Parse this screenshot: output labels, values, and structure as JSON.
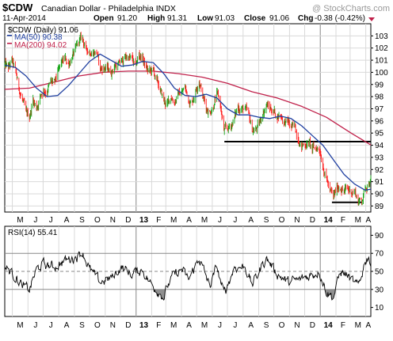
{
  "header": {
    "symbol": "$CDW",
    "description": "Canadian Dollar - Philadelphia INDX",
    "watermark": "@ StockCharts.com",
    "date": "11-Apr-2014",
    "quote": {
      "open_label": "Open",
      "open": "91.20",
      "high_label": "High",
      "high": "91.31",
      "low_label": "Low",
      "low": "91.03",
      "close_label": "Close",
      "close": "91.06",
      "chg_label": "Chg",
      "chg": "-0.38 (-0.42%)"
    }
  },
  "colors": {
    "price_up": "#16a516",
    "price_down": "#ff1c1c",
    "ma50": "#1f3fa0",
    "ma200": "#c0204a",
    "rsi": "#000000",
    "rsi_fill": "#909090",
    "grid": "#d9d9d9",
    "border": "#000000"
  },
  "price_legend": {
    "series": "$CDW (Daily) 91.06",
    "ma50": "MA(50) 90.38",
    "ma200": "MA(200) 94.02"
  },
  "rsi_legend": "RSI(14) 55.41",
  "x_axis": [
    {
      "label": "M",
      "month": 5,
      "year": 2012
    },
    {
      "label": "J",
      "month": 6,
      "year": 2012
    },
    {
      "label": "J",
      "month": 7,
      "year": 2012
    },
    {
      "label": "A",
      "month": 8,
      "year": 2012
    },
    {
      "label": "S",
      "month": 9,
      "year": 2012
    },
    {
      "label": "O",
      "month": 10,
      "year": 2012
    },
    {
      "label": "N",
      "month": 11,
      "year": 2012
    },
    {
      "label": "D",
      "month": 12,
      "year": 2012
    },
    {
      "label": "13",
      "month": 1,
      "year": 2013,
      "bold": true
    },
    {
      "label": "F",
      "month": 2,
      "year": 2013
    },
    {
      "label": "M",
      "month": 3,
      "year": 2013
    },
    {
      "label": "A",
      "month": 4,
      "year": 2013
    },
    {
      "label": "M",
      "month": 5,
      "year": 2013
    },
    {
      "label": "J",
      "month": 6,
      "year": 2013
    },
    {
      "label": "J",
      "month": 7,
      "year": 2013
    },
    {
      "label": "A",
      "month": 8,
      "year": 2013
    },
    {
      "label": "S",
      "month": 9,
      "year": 2013
    },
    {
      "label": "O",
      "month": 10,
      "year": 2013
    },
    {
      "label": "N",
      "month": 11,
      "year": 2013
    },
    {
      "label": "D",
      "month": 12,
      "year": 2013
    },
    {
      "label": "14",
      "month": 1,
      "year": 2014,
      "bold": true
    },
    {
      "label": "F",
      "month": 2,
      "year": 2014
    },
    {
      "label": "M",
      "month": 3,
      "year": 2014
    },
    {
      "label": "A",
      "month": 4,
      "year": 2014
    }
  ],
  "chart_data": {
    "type": "line",
    "x_start": "2012-04-16",
    "x_end": "2014-04-11",
    "price_axis": {
      "ticks": [
        89,
        90,
        91,
        92,
        93,
        94,
        95,
        96,
        97,
        98,
        99,
        100,
        101,
        102,
        103
      ],
      "range": [
        88.5,
        104.0
      ]
    },
    "rsi_axis": {
      "ticks": [
        10,
        30,
        50,
        70,
        90
      ],
      "range": [
        0,
        100
      ],
      "reference_lines": [
        30,
        50,
        70
      ]
    },
    "horizontal_lines": [
      {
        "value": 94.3,
        "from": "2013-06-25",
        "to": "2014-04-11"
      },
      {
        "value": 89.3,
        "from": "2014-01-24",
        "to": "2014-03-24"
      }
    ],
    "price_path": [
      [
        "2012-04-16",
        100.6
      ],
      [
        "2012-04-23",
        100.2
      ],
      [
        "2012-04-30",
        100.9
      ],
      [
        "2012-05-07",
        100.0
      ],
      [
        "2012-05-14",
        98.6
      ],
      [
        "2012-05-21",
        97.8
      ],
      [
        "2012-05-28",
        96.4
      ],
      [
        "2012-06-04",
        96.3
      ],
      [
        "2012-06-11",
        97.8
      ],
      [
        "2012-06-18",
        97.1
      ],
      [
        "2012-06-25",
        98.1
      ],
      [
        "2012-07-02",
        98.6
      ],
      [
        "2012-07-09",
        98.6
      ],
      [
        "2012-07-16",
        99.2
      ],
      [
        "2012-07-23",
        98.9
      ],
      [
        "2012-07-30",
        99.8
      ],
      [
        "2012-08-06",
        100.6
      ],
      [
        "2012-08-13",
        101.0
      ],
      [
        "2012-08-20",
        100.7
      ],
      [
        "2012-08-27",
        101.4
      ],
      [
        "2012-09-03",
        101.7
      ],
      [
        "2012-09-10",
        102.5
      ],
      [
        "2012-09-17",
        102.7
      ],
      [
        "2012-09-24",
        101.8
      ],
      [
        "2012-10-01",
        101.8
      ],
      [
        "2012-10-08",
        101.8
      ],
      [
        "2012-10-15",
        101.8
      ],
      [
        "2012-10-22",
        100.2
      ],
      [
        "2012-10-29",
        100.4
      ],
      [
        "2012-11-05",
        100.3
      ],
      [
        "2012-11-12",
        100.0
      ],
      [
        "2012-11-19",
        100.6
      ],
      [
        "2012-11-26",
        100.6
      ],
      [
        "2012-12-03",
        100.8
      ],
      [
        "2012-12-10",
        101.2
      ],
      [
        "2012-12-17",
        101.3
      ],
      [
        "2012-12-24",
        101.0
      ],
      [
        "2012-12-31",
        100.3
      ],
      [
        "2013-01-07",
        101.4
      ],
      [
        "2013-01-14",
        101.2
      ],
      [
        "2013-01-21",
        100.3
      ],
      [
        "2013-01-28",
        100.0
      ],
      [
        "2013-02-04",
        100.1
      ],
      [
        "2013-02-11",
        99.2
      ],
      [
        "2013-02-18",
        98.4
      ],
      [
        "2013-02-25",
        97.6
      ],
      [
        "2013-03-04",
        97.3
      ],
      [
        "2013-03-11",
        98.0
      ],
      [
        "2013-03-18",
        97.7
      ],
      [
        "2013-03-25",
        98.2
      ],
      [
        "2013-04-01",
        98.3
      ],
      [
        "2013-04-08",
        98.7
      ],
      [
        "2013-04-15",
        97.8
      ],
      [
        "2013-04-22",
        97.6
      ],
      [
        "2013-04-29",
        98.6
      ],
      [
        "2013-05-06",
        99.6
      ],
      [
        "2013-05-13",
        98.1
      ],
      [
        "2013-05-20",
        97.1
      ],
      [
        "2013-05-27",
        96.8
      ],
      [
        "2013-06-03",
        97.4
      ],
      [
        "2013-06-10",
        98.2
      ],
      [
        "2013-06-17",
        97.3
      ],
      [
        "2013-06-24",
        95.1
      ],
      [
        "2013-07-01",
        95.2
      ],
      [
        "2013-07-08",
        95.6
      ],
      [
        "2013-07-15",
        96.3
      ],
      [
        "2013-07-22",
        97.1
      ],
      [
        "2013-07-29",
        97.1
      ],
      [
        "2013-08-05",
        96.9
      ],
      [
        "2013-08-12",
        96.3
      ],
      [
        "2013-08-19",
        95.2
      ],
      [
        "2013-08-26",
        95.3
      ],
      [
        "2013-09-02",
        95.6
      ],
      [
        "2013-09-09",
        96.7
      ],
      [
        "2013-09-16",
        97.4
      ],
      [
        "2013-09-23",
        97.0
      ],
      [
        "2013-09-30",
        96.9
      ],
      [
        "2013-10-07",
        96.4
      ],
      [
        "2013-10-14",
        96.6
      ],
      [
        "2013-10-21",
        96.0
      ],
      [
        "2013-10-28",
        95.9
      ],
      [
        "2013-11-04",
        95.4
      ],
      [
        "2013-11-11",
        95.4
      ],
      [
        "2013-11-18",
        94.8
      ],
      [
        "2013-11-25",
        94.0
      ],
      [
        "2013-12-02",
        94.1
      ],
      [
        "2013-12-09",
        94.3
      ],
      [
        "2013-12-16",
        93.6
      ],
      [
        "2013-12-23",
        93.7
      ],
      [
        "2013-12-30",
        93.8
      ],
      [
        "2014-01-06",
        92.6
      ],
      [
        "2014-01-13",
        91.4
      ],
      [
        "2014-01-20",
        90.2
      ],
      [
        "2014-01-27",
        89.6
      ],
      [
        "2014-02-03",
        90.4
      ],
      [
        "2014-02-10",
        90.7
      ],
      [
        "2014-02-17",
        90.3
      ],
      [
        "2014-02-24",
        90.3
      ],
      [
        "2014-03-03",
        90.2
      ],
      [
        "2014-03-10",
        90.3
      ],
      [
        "2014-03-17",
        89.4
      ],
      [
        "2014-03-24",
        89.5
      ],
      [
        "2014-03-31",
        90.5
      ],
      [
        "2014-04-07",
        91.1
      ],
      [
        "2014-04-11",
        91.06
      ]
    ],
    "ma50_path": [
      [
        "2012-04-16",
        100.6
      ],
      [
        "2012-05-07",
        100.4
      ],
      [
        "2012-05-28",
        99.7
      ],
      [
        "2012-06-18",
        98.7
      ],
      [
        "2012-07-09",
        98.0
      ],
      [
        "2012-07-30",
        98.1
      ],
      [
        "2012-08-20",
        98.9
      ],
      [
        "2012-09-10",
        99.9
      ],
      [
        "2012-10-01",
        100.9
      ],
      [
        "2012-10-22",
        101.5
      ],
      [
        "2012-11-12",
        101.0
      ],
      [
        "2012-12-03",
        100.5
      ],
      [
        "2012-12-24",
        100.6
      ],
      [
        "2013-01-14",
        100.9
      ],
      [
        "2013-02-04",
        100.8
      ],
      [
        "2013-02-25",
        99.9
      ],
      [
        "2013-03-18",
        98.7
      ],
      [
        "2013-04-08",
        98.1
      ],
      [
        "2013-04-29",
        98.0
      ],
      [
        "2013-05-20",
        98.2
      ],
      [
        "2013-06-10",
        97.9
      ],
      [
        "2013-07-01",
        97.0
      ],
      [
        "2013-07-22",
        96.5
      ],
      [
        "2013-08-12",
        96.5
      ],
      [
        "2013-09-02",
        96.3
      ],
      [
        "2013-09-23",
        96.2
      ],
      [
        "2013-10-14",
        96.4
      ],
      [
        "2013-11-04",
        96.2
      ],
      [
        "2013-11-25",
        95.6
      ],
      [
        "2013-12-16",
        94.8
      ],
      [
        "2014-01-06",
        94.0
      ],
      [
        "2014-01-27",
        92.8
      ],
      [
        "2014-02-17",
        91.6
      ],
      [
        "2014-03-10",
        90.8
      ],
      [
        "2014-03-31",
        90.3
      ],
      [
        "2014-04-11",
        90.38
      ]
    ],
    "ma200_path": [
      [
        "2012-04-16",
        98.6
      ],
      [
        "2012-06-04",
        98.7
      ],
      [
        "2012-07-23",
        99.2
      ],
      [
        "2012-09-10",
        99.7
      ],
      [
        "2012-10-29",
        100.0
      ],
      [
        "2012-12-17",
        100.1
      ],
      [
        "2013-02-04",
        100.1
      ],
      [
        "2013-03-25",
        99.9
      ],
      [
        "2013-05-13",
        99.6
      ],
      [
        "2013-07-01",
        99.1
      ],
      [
        "2013-08-19",
        98.4
      ],
      [
        "2013-10-07",
        97.9
      ],
      [
        "2013-11-25",
        97.2
      ],
      [
        "2014-01-13",
        96.3
      ],
      [
        "2014-03-03",
        95.0
      ],
      [
        "2014-04-11",
        94.02
      ]
    ],
    "rsi_path": [
      [
        "2012-04-16",
        55
      ],
      [
        "2012-05-07",
        45
      ],
      [
        "2012-05-21",
        33
      ],
      [
        "2012-06-04",
        30
      ],
      [
        "2012-06-18",
        52
      ],
      [
        "2012-07-02",
        58
      ],
      [
        "2012-07-23",
        55
      ],
      [
        "2012-08-13",
        62
      ],
      [
        "2012-09-03",
        66
      ],
      [
        "2012-09-17",
        72
      ],
      [
        "2012-10-01",
        52
      ],
      [
        "2012-10-22",
        38
      ],
      [
        "2012-11-12",
        42
      ],
      [
        "2012-12-03",
        55
      ],
      [
        "2012-12-24",
        47
      ],
      [
        "2013-01-14",
        52
      ],
      [
        "2013-01-28",
        38
      ],
      [
        "2013-02-11",
        30
      ],
      [
        "2013-02-25",
        22
      ],
      [
        "2013-03-11",
        42
      ],
      [
        "2013-04-01",
        52
      ],
      [
        "2013-04-15",
        40
      ],
      [
        "2013-05-06",
        65
      ],
      [
        "2013-05-27",
        33
      ],
      [
        "2013-06-10",
        55
      ],
      [
        "2013-06-24",
        25
      ],
      [
        "2013-07-15",
        55
      ],
      [
        "2013-08-05",
        55
      ],
      [
        "2013-08-19",
        35
      ],
      [
        "2013-09-16",
        65
      ],
      [
        "2013-10-07",
        48
      ],
      [
        "2013-10-28",
        38
      ],
      [
        "2013-11-18",
        40
      ],
      [
        "2013-12-09",
        45
      ],
      [
        "2013-12-30",
        50
      ],
      [
        "2014-01-13",
        28
      ],
      [
        "2014-01-27",
        22
      ],
      [
        "2014-02-10",
        50
      ],
      [
        "2014-02-24",
        45
      ],
      [
        "2014-03-17",
        32
      ],
      [
        "2014-03-31",
        62
      ],
      [
        "2014-04-07",
        68
      ],
      [
        "2014-04-11",
        55.41
      ]
    ]
  }
}
